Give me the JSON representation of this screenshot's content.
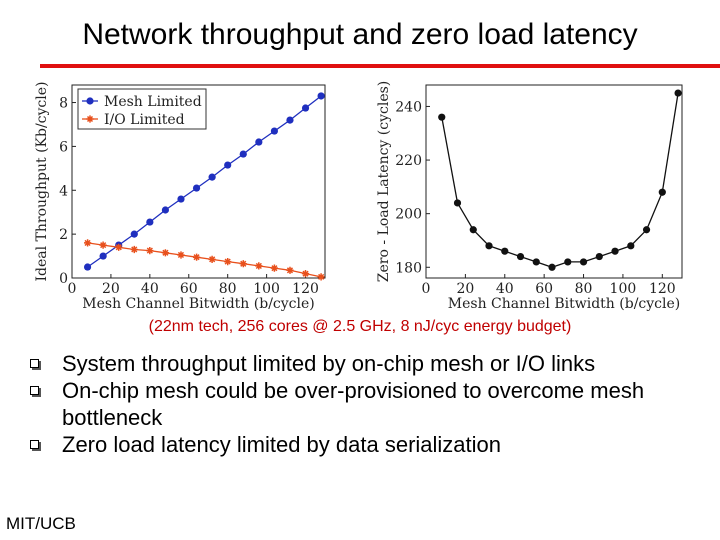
{
  "slide": {
    "title": "Network throughput and zero load latency",
    "caption": "(22nm tech, 256 cores @ 2.5 GHz, 8 nJ/cyc energy budget)",
    "bullets": [
      "System throughput limited by on-chip mesh or I/O links",
      "On-chip mesh could be over-provisioned to overcome mesh bottleneck",
      "Zero load latency limited by data serialization"
    ],
    "footer": "MIT/UCB"
  },
  "colors": {
    "title_rule": "#e01010",
    "caption": "#c00000",
    "mesh": "#1f2fbf",
    "io": "#e8501c"
  },
  "chart_data": [
    {
      "type": "line",
      "xlabel": "Mesh Channel Bitwidth (b/cycle)",
      "ylabel": "Ideal Throughput (Kb/cycle)",
      "xlim": [
        0,
        130
      ],
      "ylim": [
        0,
        8.8
      ],
      "xticks": [
        0,
        20,
        40,
        60,
        80,
        100,
        120
      ],
      "yticks": [
        0,
        2,
        4,
        6,
        8
      ],
      "legend": "top-left",
      "grid": false,
      "x": [
        8,
        16,
        24,
        32,
        40,
        48,
        56,
        64,
        72,
        80,
        88,
        96,
        104,
        112,
        120,
        128
      ],
      "series": [
        {
          "name": "Mesh Limited",
          "marker": "circle",
          "values": [
            0.5,
            1.0,
            1.5,
            2.0,
            2.55,
            3.1,
            3.6,
            4.1,
            4.6,
            5.15,
            5.65,
            6.2,
            6.7,
            7.2,
            7.75,
            8.3
          ]
        },
        {
          "name": "I/O Limited",
          "marker": "star",
          "values": [
            1.6,
            1.5,
            1.4,
            1.3,
            1.25,
            1.15,
            1.05,
            0.95,
            0.85,
            0.75,
            0.65,
            0.55,
            0.45,
            0.35,
            0.2,
            0.05
          ]
        }
      ]
    },
    {
      "type": "line",
      "xlabel": "Mesh Channel Bitwidth (b/cycle)",
      "ylabel": "Zero - Load Latency (cycles)",
      "xlim": [
        0,
        130
      ],
      "ylim": [
        176,
        248
      ],
      "xticks": [
        0,
        20,
        40,
        60,
        80,
        100,
        120
      ],
      "yticks": [
        180,
        200,
        220,
        240
      ],
      "grid": false,
      "x": [
        8,
        16,
        24,
        32,
        40,
        48,
        56,
        64,
        72,
        80,
        88,
        96,
        104,
        112,
        120,
        128
      ],
      "series": [
        {
          "name": "",
          "marker": "circle",
          "values": [
            236,
            204,
            194,
            188,
            186,
            184,
            182,
            180,
            182,
            182,
            184,
            186,
            188,
            194,
            208,
            245
          ]
        }
      ]
    }
  ]
}
